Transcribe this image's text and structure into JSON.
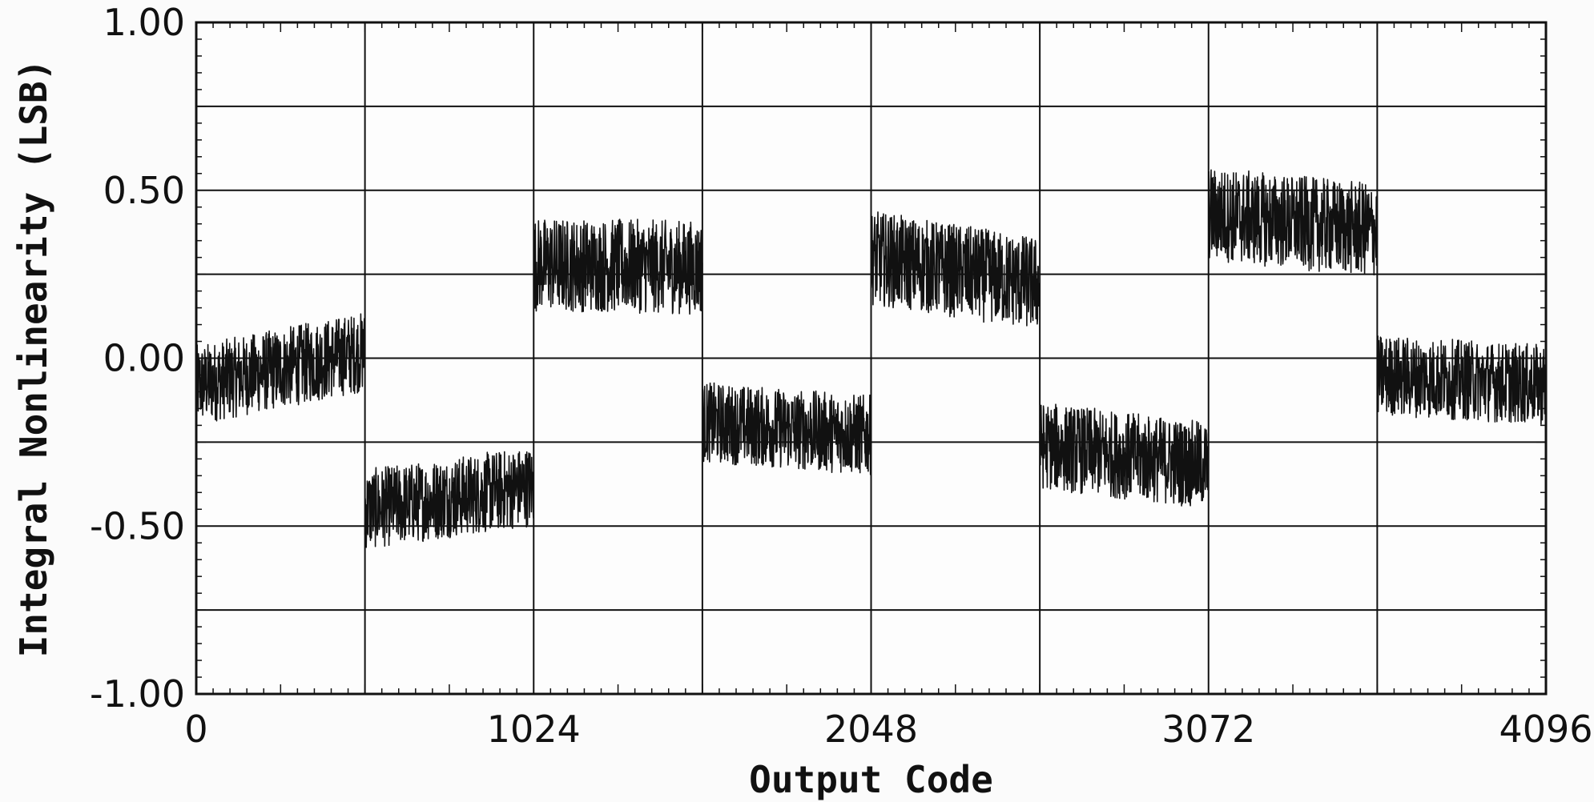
{
  "chart_data": {
    "type": "line",
    "title": "",
    "xlabel": "Output Code",
    "ylabel": "Integral Nonlinearity (LSB)",
    "xlim": [
      0,
      4096
    ],
    "ylim": [
      -1.0,
      1.0
    ],
    "x_tick_labels": [
      "0",
      "1024",
      "2048",
      "3072",
      "4096"
    ],
    "x_tick_values": [
      0,
      1024,
      2048,
      3072,
      4096
    ],
    "y_tick_labels": [
      "1.00",
      "0.50",
      "0.00",
      "-0.50",
      "-1.00"
    ],
    "y_tick_values": [
      1.0,
      0.5,
      0.0,
      -0.5,
      -1.0
    ],
    "x_gridlines": [
      512,
      1024,
      1536,
      2048,
      2560,
      3072,
      3584
    ],
    "y_gridlines": [
      0.75,
      0.5,
      0.25,
      0.0,
      -0.25,
      -0.5,
      -0.75
    ],
    "grid": true,
    "legend": "none",
    "line_color": "#111111",
    "series": [
      {
        "segments": [
          {
            "x_start": 0,
            "x_end": 512,
            "y_center_start": -0.08,
            "y_center_end": 0.02,
            "noise_amplitude": 0.12
          },
          {
            "x_start": 512,
            "x_end": 1024,
            "y_center_start": -0.45,
            "y_center_end": -0.38,
            "noise_amplitude": 0.12
          },
          {
            "x_start": 1024,
            "x_end": 1536,
            "y_center_start": 0.28,
            "y_center_end": 0.27,
            "noise_amplitude": 0.14
          },
          {
            "x_start": 1536,
            "x_end": 2048,
            "y_center_start": -0.19,
            "y_center_end": -0.23,
            "noise_amplitude": 0.12
          },
          {
            "x_start": 2048,
            "x_end": 2560,
            "y_center_start": 0.3,
            "y_center_end": 0.22,
            "noise_amplitude": 0.14
          },
          {
            "x_start": 2560,
            "x_end": 3072,
            "y_center_start": -0.26,
            "y_center_end": -0.32,
            "noise_amplitude": 0.13
          },
          {
            "x_start": 3072,
            "x_end": 3584,
            "y_center_start": 0.43,
            "y_center_end": 0.38,
            "noise_amplitude": 0.14
          },
          {
            "x_start": 3584,
            "x_end": 4096,
            "y_center_start": -0.05,
            "y_center_end": -0.08,
            "noise_amplitude": 0.12
          }
        ]
      }
    ]
  }
}
